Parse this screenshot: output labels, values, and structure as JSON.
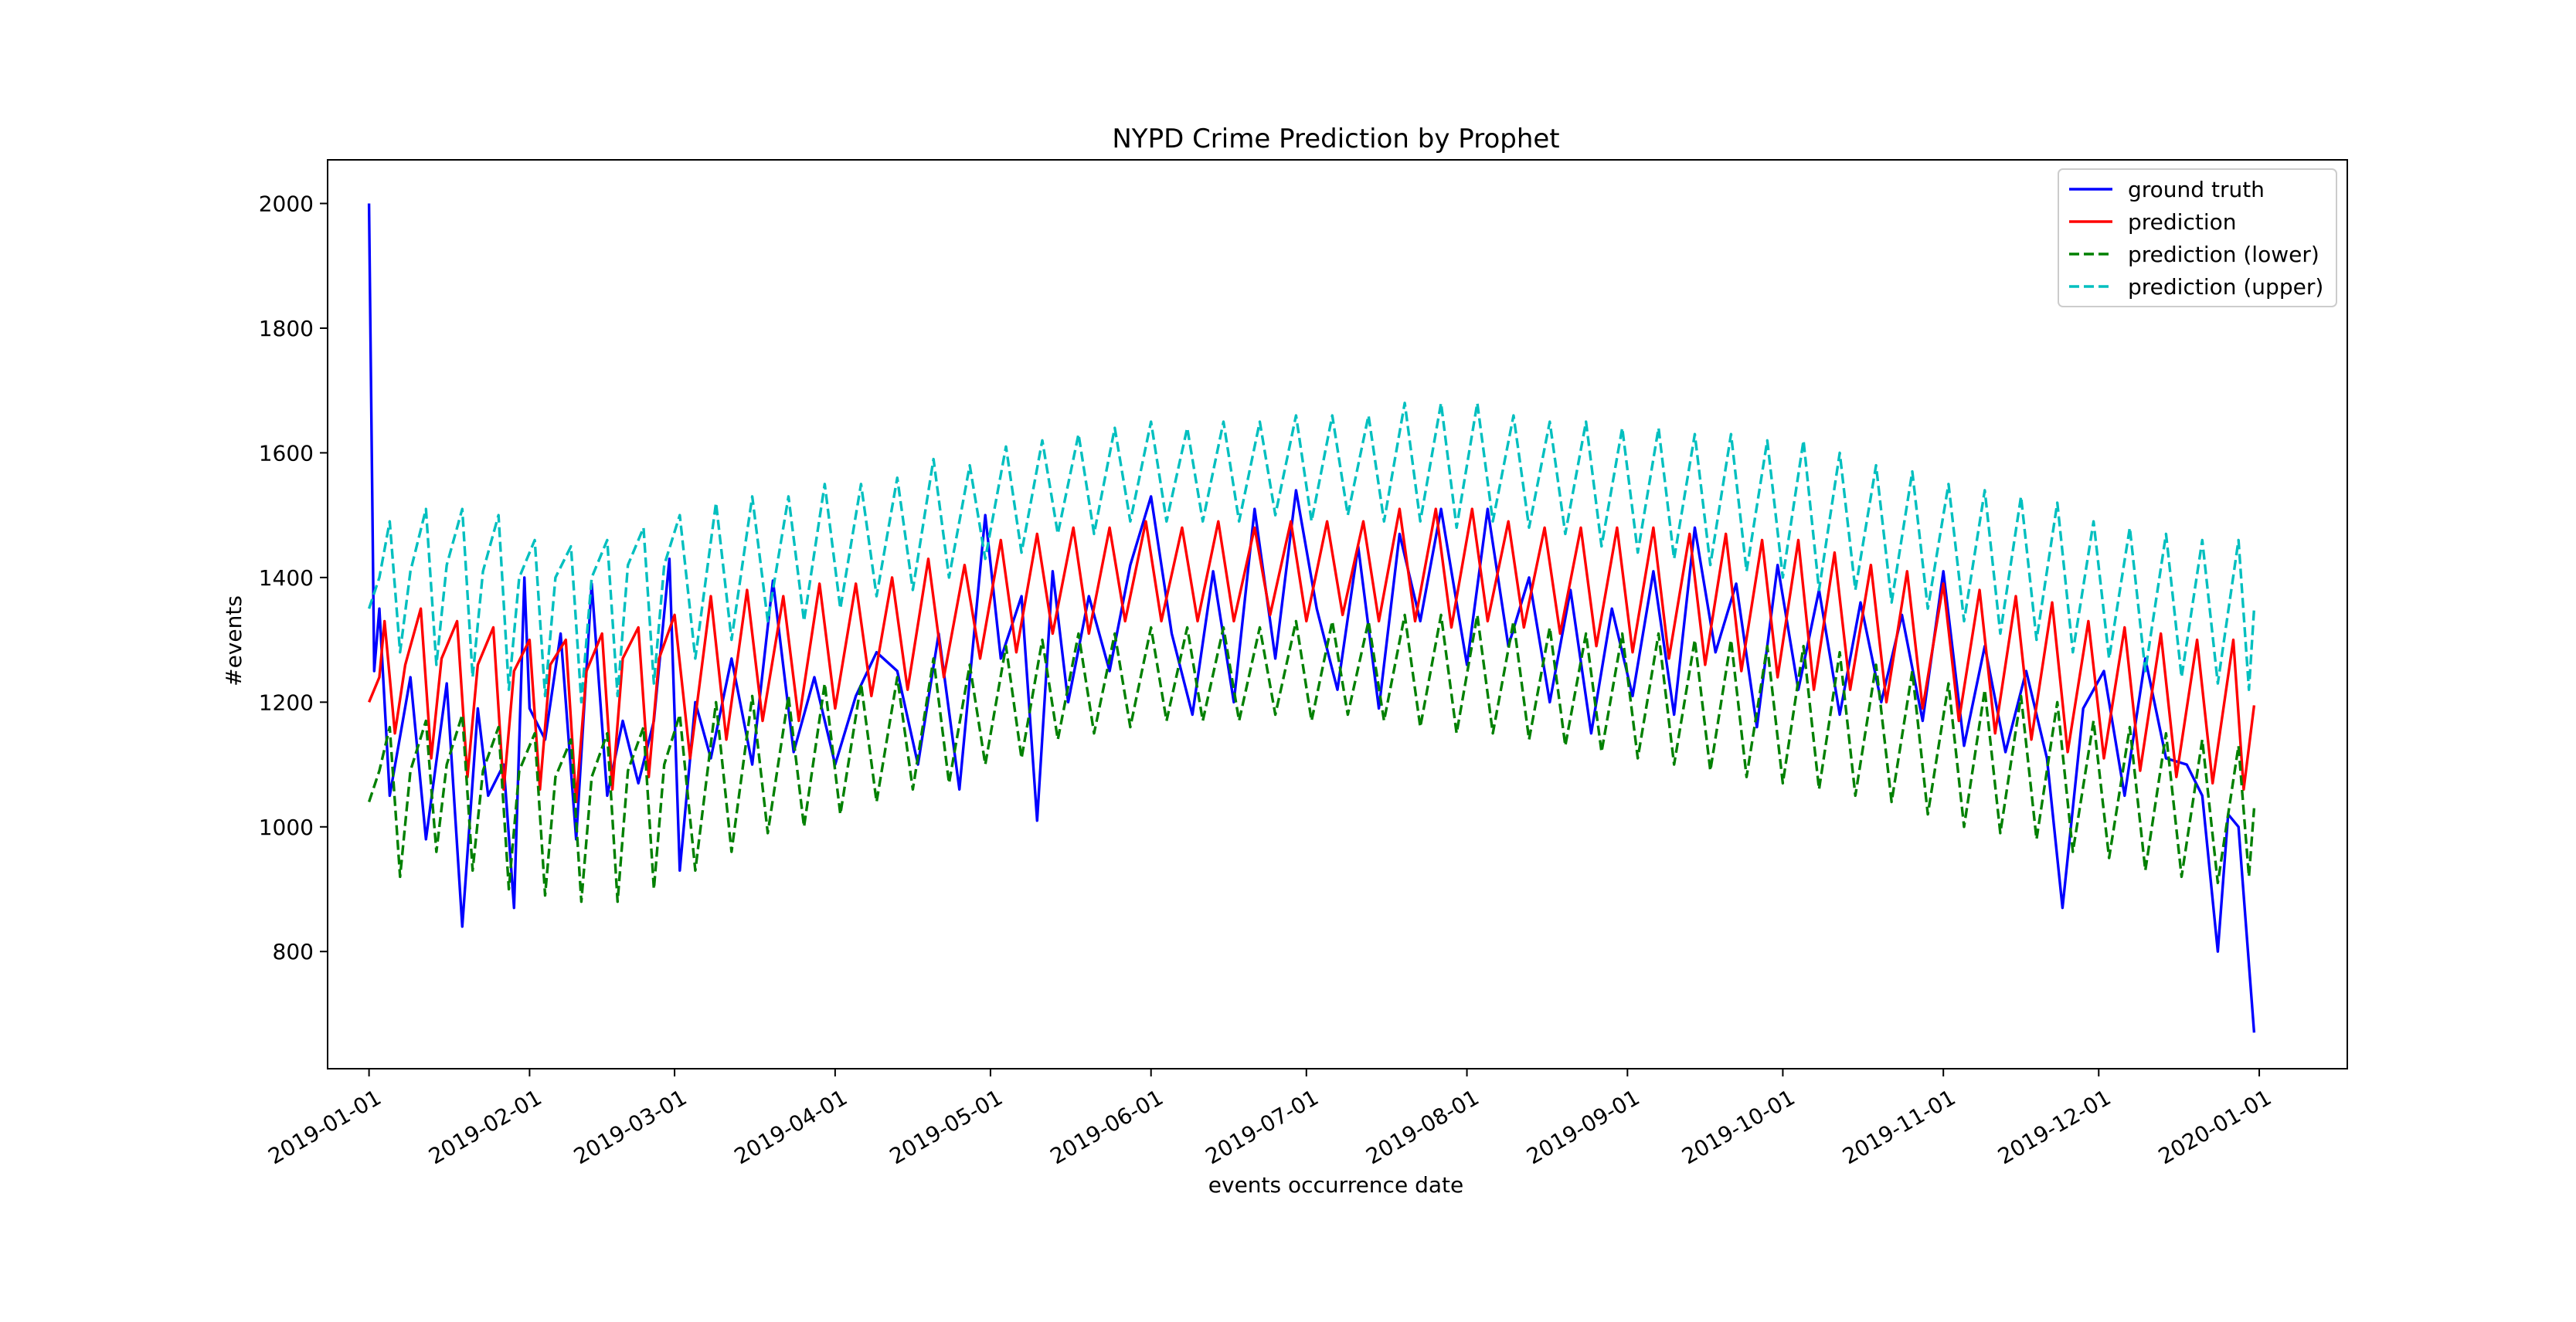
{
  "chart_data": {
    "type": "line",
    "title": "NYPD Crime Prediction by Prophet",
    "xlabel": "events occurrence date",
    "ylabel": "#events",
    "x_range": [
      "2018-12-24",
      "2020-01-18"
    ],
    "ylim": [
      612,
      2070
    ],
    "x_ticks": [
      "2019-01-01",
      "2019-02-01",
      "2019-03-01",
      "2019-04-01",
      "2019-05-01",
      "2019-06-01",
      "2019-07-01",
      "2019-08-01",
      "2019-09-01",
      "2019-10-01",
      "2019-11-01",
      "2019-12-01",
      "2020-01-01"
    ],
    "y_ticks": [
      800,
      1000,
      1200,
      1400,
      1600,
      1800,
      2000
    ],
    "grid": false,
    "legend_position": "top-right",
    "series": [
      {
        "name": "ground truth",
        "color": "#0000ff",
        "dash": "solid",
        "x": [
          "2019-01-01",
          "2019-01-02",
          "2019-01-03",
          "2019-01-05",
          "2019-01-09",
          "2019-01-12",
          "2019-01-16",
          "2019-01-19",
          "2019-01-22",
          "2019-01-24",
          "2019-01-27",
          "2019-01-29",
          "2019-01-31",
          "2019-02-01",
          "2019-02-04",
          "2019-02-07",
          "2019-02-10",
          "2019-02-13",
          "2019-02-16",
          "2019-02-19",
          "2019-02-22",
          "2019-02-25",
          "2019-02-28",
          "2019-03-02",
          "2019-03-05",
          "2019-03-08",
          "2019-03-12",
          "2019-03-16",
          "2019-03-20",
          "2019-03-24",
          "2019-03-28",
          "2019-04-01",
          "2019-04-05",
          "2019-04-09",
          "2019-04-13",
          "2019-04-17",
          "2019-04-21",
          "2019-04-25",
          "2019-04-30",
          "2019-05-03",
          "2019-05-07",
          "2019-05-10",
          "2019-05-13",
          "2019-05-16",
          "2019-05-20",
          "2019-05-24",
          "2019-05-28",
          "2019-06-01",
          "2019-06-05",
          "2019-06-09",
          "2019-06-13",
          "2019-06-17",
          "2019-06-21",
          "2019-06-25",
          "2019-06-29",
          "2019-07-03",
          "2019-07-07",
          "2019-07-11",
          "2019-07-15",
          "2019-07-19",
          "2019-07-23",
          "2019-07-27",
          "2019-08-01",
          "2019-08-05",
          "2019-08-09",
          "2019-08-13",
          "2019-08-17",
          "2019-08-21",
          "2019-08-25",
          "2019-08-29",
          "2019-09-02",
          "2019-09-06",
          "2019-09-10",
          "2019-09-14",
          "2019-09-18",
          "2019-09-22",
          "2019-09-26",
          "2019-09-30",
          "2019-10-04",
          "2019-10-08",
          "2019-10-12",
          "2019-10-16",
          "2019-10-20",
          "2019-10-24",
          "2019-10-28",
          "2019-11-01",
          "2019-11-05",
          "2019-11-09",
          "2019-11-13",
          "2019-11-17",
          "2019-11-21",
          "2019-11-24",
          "2019-11-28",
          "2019-12-02",
          "2019-12-06",
          "2019-12-10",
          "2019-12-14",
          "2019-12-18",
          "2019-12-21",
          "2019-12-24",
          "2019-12-26",
          "2019-12-28",
          "2019-12-31"
        ],
        "y": [
          2000,
          1250,
          1350,
          1050,
          1240,
          980,
          1230,
          840,
          1190,
          1050,
          1100,
          870,
          1400,
          1190,
          1140,
          1310,
          980,
          1390,
          1050,
          1170,
          1070,
          1170,
          1430,
          930,
          1200,
          1110,
          1270,
          1100,
          1395,
          1120,
          1240,
          1100,
          1210,
          1280,
          1250,
          1100,
          1310,
          1060,
          1500,
          1270,
          1370,
          1010,
          1410,
          1200,
          1370,
          1250,
          1420,
          1530,
          1310,
          1180,
          1410,
          1200,
          1510,
          1270,
          1540,
          1350,
          1220,
          1450,
          1190,
          1470,
          1330,
          1510,
          1260,
          1510,
          1290,
          1400,
          1200,
          1380,
          1150,
          1350,
          1210,
          1410,
          1180,
          1480,
          1280,
          1390,
          1160,
          1420,
          1220,
          1380,
          1180,
          1360,
          1200,
          1340,
          1170,
          1410,
          1130,
          1290,
          1120,
          1250,
          1110,
          870,
          1190,
          1250,
          1050,
          1270,
          1110,
          1100,
          1050,
          800,
          1020,
          1000,
          670
        ]
      },
      {
        "name": "prediction",
        "color": "#ff0000",
        "dash": "solid",
        "x": [
          "2019-01-01",
          "2019-01-03",
          "2019-01-04",
          "2019-01-06",
          "2019-01-08",
          "2019-01-11",
          "2019-01-13",
          "2019-01-15",
          "2019-01-18",
          "2019-01-20",
          "2019-01-22",
          "2019-01-25",
          "2019-01-27",
          "2019-01-29",
          "2019-02-01",
          "2019-02-03",
          "2019-02-05",
          "2019-02-08",
          "2019-02-10",
          "2019-02-12",
          "2019-02-15",
          "2019-02-17",
          "2019-02-19",
          "2019-02-22",
          "2019-02-24",
          "2019-02-26",
          "2019-03-01",
          "2019-03-04",
          "2019-03-08",
          "2019-03-11",
          "2019-03-15",
          "2019-03-18",
          "2019-03-22",
          "2019-03-25",
          "2019-03-29",
          "2019-04-01",
          "2019-04-05",
          "2019-04-08",
          "2019-04-12",
          "2019-04-15",
          "2019-04-19",
          "2019-04-22",
          "2019-04-26",
          "2019-04-29",
          "2019-05-03",
          "2019-05-06",
          "2019-05-10",
          "2019-05-13",
          "2019-05-17",
          "2019-05-20",
          "2019-05-24",
          "2019-05-27",
          "2019-05-31",
          "2019-06-03",
          "2019-06-07",
          "2019-06-10",
          "2019-06-14",
          "2019-06-17",
          "2019-06-21",
          "2019-06-24",
          "2019-06-28",
          "2019-07-01",
          "2019-07-05",
          "2019-07-08",
          "2019-07-12",
          "2019-07-15",
          "2019-07-19",
          "2019-07-22",
          "2019-07-26",
          "2019-07-29",
          "2019-08-02",
          "2019-08-05",
          "2019-08-09",
          "2019-08-12",
          "2019-08-16",
          "2019-08-19",
          "2019-08-23",
          "2019-08-26",
          "2019-08-30",
          "2019-09-02",
          "2019-09-06",
          "2019-09-09",
          "2019-09-13",
          "2019-09-16",
          "2019-09-20",
          "2019-09-23",
          "2019-09-27",
          "2019-09-30",
          "2019-10-04",
          "2019-10-07",
          "2019-10-11",
          "2019-10-14",
          "2019-10-18",
          "2019-10-21",
          "2019-10-25",
          "2019-10-28",
          "2019-11-01",
          "2019-11-04",
          "2019-11-08",
          "2019-11-11",
          "2019-11-15",
          "2019-11-18",
          "2019-11-22",
          "2019-11-25",
          "2019-11-29",
          "2019-12-02",
          "2019-12-06",
          "2019-12-09",
          "2019-12-13",
          "2019-12-16",
          "2019-12-20",
          "2019-12-23",
          "2019-12-27",
          "2019-12-29",
          "2019-12-31"
        ],
        "y": [
          1200,
          1240,
          1330,
          1150,
          1260,
          1350,
          1110,
          1270,
          1330,
          1080,
          1260,
          1320,
          1060,
          1250,
          1300,
          1060,
          1260,
          1300,
          1040,
          1250,
          1310,
          1060,
          1270,
          1320,
          1080,
          1270,
          1340,
          1110,
          1370,
          1140,
          1380,
          1170,
          1370,
          1170,
          1390,
          1190,
          1390,
          1210,
          1400,
          1220,
          1430,
          1240,
          1420,
          1270,
          1460,
          1280,
          1470,
          1310,
          1480,
          1310,
          1480,
          1330,
          1490,
          1330,
          1480,
          1330,
          1490,
          1330,
          1480,
          1340,
          1490,
          1330,
          1490,
          1340,
          1490,
          1330,
          1510,
          1330,
          1510,
          1320,
          1510,
          1330,
          1490,
          1320,
          1480,
          1310,
          1480,
          1290,
          1480,
          1280,
          1480,
          1270,
          1470,
          1260,
          1470,
          1250,
          1460,
          1240,
          1460,
          1220,
          1440,
          1220,
          1420,
          1200,
          1410,
          1190,
          1390,
          1170,
          1380,
          1150,
          1370,
          1140,
          1360,
          1120,
          1330,
          1110,
          1320,
          1090,
          1310,
          1080,
          1300,
          1070,
          1300,
          1060,
          1195
        ]
      },
      {
        "name": "prediction (lower)",
        "color": "#008000",
        "dash": "dashed",
        "x": [
          "2019-01-01",
          "2019-01-03",
          "2019-01-05",
          "2019-01-07",
          "2019-01-09",
          "2019-01-12",
          "2019-01-14",
          "2019-01-16",
          "2019-01-19",
          "2019-01-21",
          "2019-01-23",
          "2019-01-26",
          "2019-01-28",
          "2019-01-30",
          "2019-02-02",
          "2019-02-04",
          "2019-02-06",
          "2019-02-09",
          "2019-02-11",
          "2019-02-13",
          "2019-02-16",
          "2019-02-18",
          "2019-02-20",
          "2019-02-23",
          "2019-02-25",
          "2019-02-27",
          "2019-03-02",
          "2019-03-05",
          "2019-03-09",
          "2019-03-12",
          "2019-03-16",
          "2019-03-19",
          "2019-03-23",
          "2019-03-26",
          "2019-03-30",
          "2019-04-02",
          "2019-04-06",
          "2019-04-09",
          "2019-04-13",
          "2019-04-16",
          "2019-04-20",
          "2019-04-23",
          "2019-04-27",
          "2019-04-30",
          "2019-05-04",
          "2019-05-07",
          "2019-05-11",
          "2019-05-14",
          "2019-05-18",
          "2019-05-21",
          "2019-05-25",
          "2019-05-28",
          "2019-06-01",
          "2019-06-04",
          "2019-06-08",
          "2019-06-11",
          "2019-06-15",
          "2019-06-18",
          "2019-06-22",
          "2019-06-25",
          "2019-06-29",
          "2019-07-02",
          "2019-07-06",
          "2019-07-09",
          "2019-07-13",
          "2019-07-16",
          "2019-07-20",
          "2019-07-23",
          "2019-07-27",
          "2019-07-30",
          "2019-08-03",
          "2019-08-06",
          "2019-08-10",
          "2019-08-13",
          "2019-08-17",
          "2019-08-20",
          "2019-08-24",
          "2019-08-27",
          "2019-08-31",
          "2019-09-03",
          "2019-09-07",
          "2019-09-10",
          "2019-09-14",
          "2019-09-17",
          "2019-09-21",
          "2019-09-24",
          "2019-09-28",
          "2019-10-01",
          "2019-10-05",
          "2019-10-08",
          "2019-10-12",
          "2019-10-15",
          "2019-10-19",
          "2019-10-22",
          "2019-10-26",
          "2019-10-29",
          "2019-11-02",
          "2019-11-05",
          "2019-11-09",
          "2019-11-12",
          "2019-11-16",
          "2019-11-19",
          "2019-11-23",
          "2019-11-26",
          "2019-11-30",
          "2019-12-03",
          "2019-12-07",
          "2019-12-10",
          "2019-12-14",
          "2019-12-17",
          "2019-12-21",
          "2019-12-24",
          "2019-12-28",
          "2019-12-30",
          "2019-12-31"
        ],
        "y": [
          1040,
          1090,
          1160,
          920,
          1090,
          1170,
          960,
          1100,
          1180,
          930,
          1090,
          1160,
          900,
          1090,
          1150,
          890,
          1080,
          1140,
          880,
          1080,
          1150,
          880,
          1090,
          1160,
          900,
          1100,
          1180,
          930,
          1200,
          960,
          1210,
          990,
          1210,
          1000,
          1230,
          1020,
          1230,
          1040,
          1240,
          1060,
          1270,
          1070,
          1260,
          1100,
          1290,
          1110,
          1300,
          1140,
          1310,
          1150,
          1310,
          1160,
          1320,
          1170,
          1320,
          1170,
          1320,
          1170,
          1320,
          1180,
          1330,
          1170,
          1330,
          1180,
          1330,
          1170,
          1340,
          1160,
          1340,
          1150,
          1340,
          1150,
          1330,
          1140,
          1320,
          1130,
          1310,
          1120,
          1310,
          1110,
          1310,
          1100,
          1300,
          1090,
          1300,
          1080,
          1290,
          1070,
          1290,
          1060,
          1280,
          1050,
          1260,
          1040,
          1250,
          1020,
          1230,
          1000,
          1220,
          990,
          1210,
          980,
          1200,
          960,
          1170,
          950,
          1160,
          930,
          1150,
          920,
          1140,
          910,
          1130,
          920,
          1030
        ]
      },
      {
        "name": "prediction (upper)",
        "color": "#00bfbf",
        "dash": "dashed",
        "x": [
          "2019-01-01",
          "2019-01-03",
          "2019-01-05",
          "2019-01-07",
          "2019-01-09",
          "2019-01-12",
          "2019-01-14",
          "2019-01-16",
          "2019-01-19",
          "2019-01-21",
          "2019-01-23",
          "2019-01-26",
          "2019-01-28",
          "2019-01-30",
          "2019-02-02",
          "2019-02-04",
          "2019-02-06",
          "2019-02-09",
          "2019-02-11",
          "2019-02-13",
          "2019-02-16",
          "2019-02-18",
          "2019-02-20",
          "2019-02-23",
          "2019-02-25",
          "2019-02-27",
          "2019-03-02",
          "2019-03-05",
          "2019-03-09",
          "2019-03-12",
          "2019-03-16",
          "2019-03-19",
          "2019-03-23",
          "2019-03-26",
          "2019-03-30",
          "2019-04-02",
          "2019-04-06",
          "2019-04-09",
          "2019-04-13",
          "2019-04-16",
          "2019-04-20",
          "2019-04-23",
          "2019-04-27",
          "2019-04-30",
          "2019-05-04",
          "2019-05-07",
          "2019-05-11",
          "2019-05-14",
          "2019-05-18",
          "2019-05-21",
          "2019-05-25",
          "2019-05-28",
          "2019-06-01",
          "2019-06-04",
          "2019-06-08",
          "2019-06-11",
          "2019-06-15",
          "2019-06-18",
          "2019-06-22",
          "2019-06-25",
          "2019-06-29",
          "2019-07-02",
          "2019-07-06",
          "2019-07-09",
          "2019-07-13",
          "2019-07-16",
          "2019-07-20",
          "2019-07-23",
          "2019-07-27",
          "2019-07-30",
          "2019-08-03",
          "2019-08-06",
          "2019-08-10",
          "2019-08-13",
          "2019-08-17",
          "2019-08-20",
          "2019-08-24",
          "2019-08-27",
          "2019-08-31",
          "2019-09-03",
          "2019-09-07",
          "2019-09-10",
          "2019-09-14",
          "2019-09-17",
          "2019-09-21",
          "2019-09-24",
          "2019-09-28",
          "2019-10-01",
          "2019-10-05",
          "2019-10-08",
          "2019-10-12",
          "2019-10-15",
          "2019-10-19",
          "2019-10-22",
          "2019-10-26",
          "2019-10-29",
          "2019-11-02",
          "2019-11-05",
          "2019-11-09",
          "2019-11-12",
          "2019-11-16",
          "2019-11-19",
          "2019-11-23",
          "2019-11-26",
          "2019-11-30",
          "2019-12-03",
          "2019-12-07",
          "2019-12-10",
          "2019-12-14",
          "2019-12-17",
          "2019-12-21",
          "2019-12-24",
          "2019-12-28",
          "2019-12-30",
          "2019-12-31"
        ],
        "y": [
          1350,
          1400,
          1490,
          1280,
          1410,
          1510,
          1260,
          1420,
          1510,
          1240,
          1410,
          1500,
          1220,
          1400,
          1460,
          1210,
          1400,
          1450,
          1200,
          1400,
          1460,
          1210,
          1420,
          1480,
          1230,
          1420,
          1500,
          1270,
          1520,
          1300,
          1530,
          1330,
          1530,
          1330,
          1550,
          1350,
          1550,
          1370,
          1560,
          1380,
          1590,
          1400,
          1580,
          1430,
          1610,
          1440,
          1620,
          1470,
          1630,
          1470,
          1640,
          1490,
          1650,
          1490,
          1640,
          1490,
          1650,
          1490,
          1650,
          1500,
          1660,
          1490,
          1660,
          1500,
          1660,
          1490,
          1680,
          1490,
          1680,
          1480,
          1680,
          1490,
          1660,
          1480,
          1650,
          1470,
          1650,
          1450,
          1640,
          1440,
          1640,
          1430,
          1630,
          1420,
          1630,
          1410,
          1620,
          1400,
          1620,
          1380,
          1600,
          1380,
          1580,
          1360,
          1570,
          1350,
          1550,
          1330,
          1540,
          1310,
          1530,
          1300,
          1520,
          1280,
          1490,
          1270,
          1480,
          1250,
          1470,
          1240,
          1460,
          1230,
          1460,
          1220,
          1350
        ]
      }
    ]
  }
}
